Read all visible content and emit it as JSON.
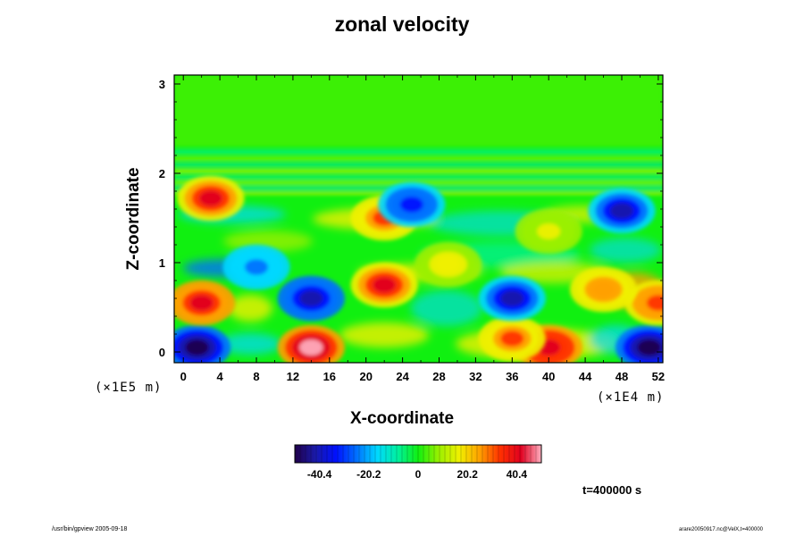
{
  "chart_data": {
    "type": "heatmap",
    "title": "zonal velocity",
    "xlabel": "X-coordinate",
    "ylabel": "Z-coordinate",
    "x_ticks": [
      "0",
      "4",
      "8",
      "12",
      "16",
      "20",
      "24",
      "28",
      "32",
      "36",
      "40",
      "44",
      "48",
      "52"
    ],
    "y_ticks": [
      "0",
      "1",
      "2",
      "3"
    ],
    "x_scale": "(×1E4 m)",
    "y_scale": "(×1E5 m)",
    "xlim": [
      -1,
      52.5
    ],
    "ylim": [
      -0.12,
      3.1
    ],
    "colorbar": {
      "ticks": [
        "-40.4",
        "-20.2",
        "0",
        "20.2",
        "40.4"
      ],
      "range": [
        -50.5,
        50.5
      ],
      "colors": [
        "#20004a",
        "#1a1aa8",
        "#0010ff",
        "#0070ff",
        "#00d8ff",
        "#00f0a0",
        "#10f010",
        "#9af000",
        "#f0f000",
        "#ffa000",
        "#ff3000",
        "#e00020",
        "#ffb0c0"
      ]
    },
    "time_label": "t=400000 s",
    "footer_left": "/usr/bin/gpview 2005-09-18",
    "footer_right": "arare20050917.nc@VelX,t=400000",
    "features": [
      {
        "x": 14,
        "z": 0.05,
        "value": 50
      },
      {
        "x": 1.5,
        "z": 0.05,
        "value": -50
      },
      {
        "x": 51,
        "z": 0.05,
        "value": -50
      },
      {
        "x": 40,
        "z": 0.05,
        "value": 45
      },
      {
        "x": 36,
        "z": 0.15,
        "value": 30
      },
      {
        "x": 14,
        "z": 0.6,
        "value": -42
      },
      {
        "x": 36,
        "z": 0.6,
        "value": -38
      },
      {
        "x": 22,
        "z": 0.75,
        "value": 40
      },
      {
        "x": 2,
        "z": 0.55,
        "value": 42
      },
      {
        "x": 52,
        "z": 0.55,
        "value": 35
      },
      {
        "x": 46,
        "z": 0.7,
        "value": 28
      },
      {
        "x": 3,
        "z": 1.72,
        "value": 38
      },
      {
        "x": 22,
        "z": 1.5,
        "value": 30
      },
      {
        "x": 25,
        "z": 1.65,
        "value": -35
      },
      {
        "x": 48,
        "z": 1.58,
        "value": -38
      },
      {
        "x": 8,
        "z": 0.95,
        "value": -25
      },
      {
        "x": 29,
        "z": 0.98,
        "value": 18
      },
      {
        "x": 40,
        "z": 1.35,
        "value": 15
      }
    ]
  }
}
